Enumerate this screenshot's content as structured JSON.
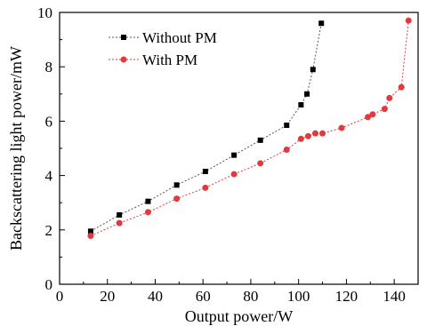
{
  "chart_data": {
    "type": "line",
    "title": "",
    "xlabel": "Output power/W",
    "ylabel": "Backscattering light power/mW",
    "xlim": [
      0,
      150
    ],
    "ylim": [
      0,
      10
    ],
    "xticks": [
      0,
      20,
      40,
      60,
      80,
      100,
      120,
      140
    ],
    "yticks": [
      0,
      2,
      4,
      6,
      8,
      10
    ],
    "grid": false,
    "legend_position": "top-left",
    "series": [
      {
        "name": "Without PM",
        "color": "#000000",
        "line_color": "#555555",
        "marker": "square",
        "x": [
          13,
          25,
          37,
          49,
          61,
          73,
          84,
          95,
          101,
          103.5,
          106,
          109.5
        ],
        "y": [
          1.95,
          2.55,
          3.05,
          3.65,
          4.15,
          4.75,
          5.3,
          5.85,
          6.6,
          7.0,
          7.9,
          9.6
        ]
      },
      {
        "name": "With PM",
        "color": "#e03a3e",
        "line_color": "#e03a3e",
        "marker": "circle",
        "x": [
          13,
          25,
          37,
          49,
          61,
          73,
          84,
          95,
          101,
          104,
          107,
          110,
          118,
          129,
          131,
          136,
          138,
          143,
          146
        ],
        "y": [
          1.78,
          2.25,
          2.65,
          3.15,
          3.55,
          4.05,
          4.45,
          4.95,
          5.35,
          5.45,
          5.55,
          5.55,
          5.75,
          6.15,
          6.25,
          6.45,
          6.85,
          7.25,
          9.7
        ]
      }
    ]
  }
}
